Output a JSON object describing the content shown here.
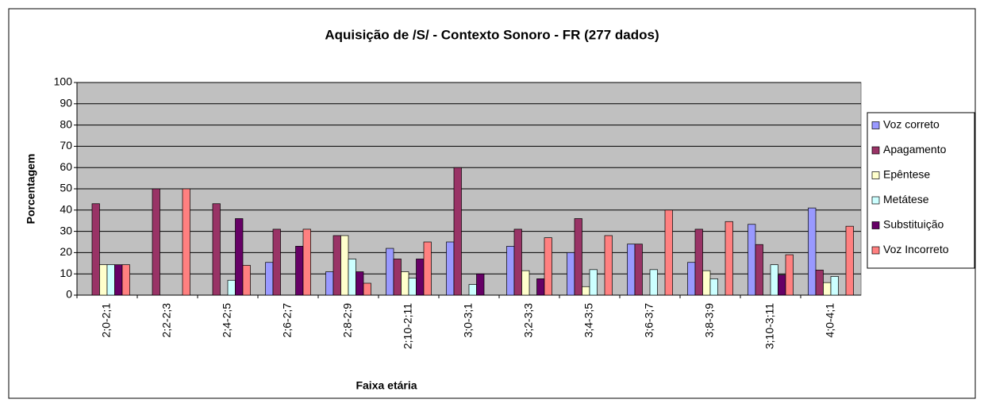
{
  "chart_data": {
    "type": "bar",
    "title": "Aquisição de /S/ - Contexto Sonoro - FR (277 dados)",
    "x_label": "Faixa etária",
    "y_label": "Porcentagem",
    "categories": [
      "2;0-2;1",
      "2;2-2;3",
      "2;4-2;5",
      "2;6-2;7",
      "2;8-2;9",
      "2;10-2;11",
      "3;0-3;1",
      "3;2-3;3",
      "3;4-3;5",
      "3;6-3;7",
      "3;8-3;9",
      "3;10-3;11",
      "4;0-4;1"
    ],
    "series": [
      {
        "name": "Voz correto",
        "color": "#9999ff",
        "values": [
          0,
          0,
          0,
          15.4,
          11,
          22,
          25,
          23,
          20,
          24,
          15.4,
          33.3,
          41
        ]
      },
      {
        "name": "Apagamento",
        "color": "#993366",
        "values": [
          43,
          50,
          43,
          31,
          28,
          17,
          60,
          31,
          36,
          24,
          31,
          23.8,
          11.8
        ]
      },
      {
        "name": "Epêntese",
        "color": "#ffffcc",
        "values": [
          14.3,
          0,
          0,
          0,
          28,
          11,
          0,
          11.5,
          4,
          0,
          11.5,
          0,
          5.9
        ]
      },
      {
        "name": "Metátese",
        "color": "#ccffff",
        "values": [
          14.3,
          0,
          7,
          0,
          17,
          8,
          5,
          0,
          12,
          12,
          7.7,
          14.3,
          8.8
        ]
      },
      {
        "name": "Substituição",
        "color": "#660066",
        "values": [
          14.3,
          0,
          36,
          23,
          11,
          17,
          10,
          7.7,
          0,
          0,
          0,
          9.5,
          0
        ]
      },
      {
        "name": "Voz Incorreto",
        "color": "#ff8080",
        "values": [
          14.3,
          50,
          14,
          31,
          5.6,
          25,
          0,
          27,
          28,
          40,
          34.6,
          19,
          32.4
        ]
      }
    ],
    "ylim": [
      0,
      100
    ],
    "yticks": [
      0,
      10,
      20,
      30,
      40,
      50,
      60,
      70,
      80,
      90,
      100
    ],
    "grid": true,
    "legend": "right"
  }
}
